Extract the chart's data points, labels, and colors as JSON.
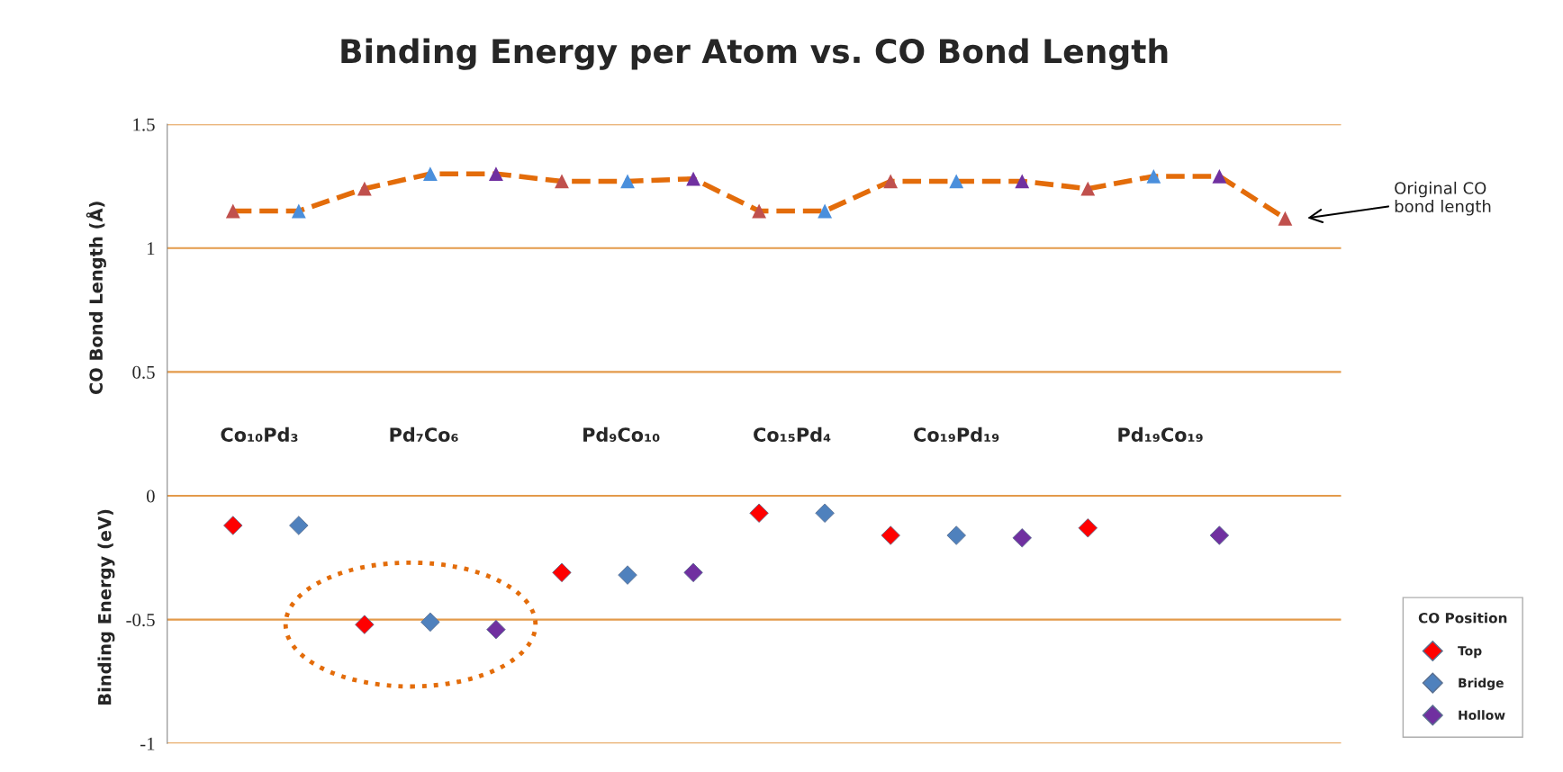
{
  "chart_data": {
    "type": "scatter",
    "title": "Binding Energy per Atom vs. CO Bond Length",
    "ylabel": "CO Bond Length (Å)",
    "categories": [
      null,
      null,
      null,
      null,
      null,
      null,
      null,
      null,
      null,
      null,
      null,
      null,
      null,
      null,
      null,
      null,
      null
    ],
    "series": [
      {
        "type": "line",
        "color": "#e36c0a",
        "line_style": "dashed",
        "marker": "none",
        "values": [
          1.15,
          1.15,
          1.24,
          1.3,
          1.3,
          1.27,
          1.27,
          1.28,
          1.15,
          1.15,
          1.27,
          1.27,
          1.27,
          1.24,
          1.29,
          1.29,
          1.12
        ]
      },
      {
        "marker": "triangle",
        "colors": [
          "#c0504d",
          "#4a8fdc",
          "#c0504d",
          "#4a8fdc",
          "#7030a0",
          "#c0504d",
          "#4a8fdc",
          "#7030a0",
          "#c0504d",
          "#4a8fdc",
          "#c0504d",
          "#4a8fdc",
          "#7030a0",
          "#c0504d",
          "#4a8fdc",
          "#7030a0",
          "#c0504d"
        ],
        "values": [
          1.15,
          1.15,
          1.24,
          1.3,
          1.3,
          1.27,
          1.27,
          1.28,
          1.15,
          1.15,
          1.27,
          1.27,
          1.27,
          1.24,
          1.29,
          1.29,
          1.12
        ]
      },
      {
        "marker": "diamond",
        "name": "Top",
        "color": "#ff0000",
        "values": [
          -0.12,
          null,
          -0.52,
          null,
          null,
          -0.31,
          null,
          null,
          -0.07,
          null,
          -0.16,
          null,
          null,
          -0.13,
          null,
          null,
          null
        ]
      },
      {
        "marker": "diamond",
        "name": "Bridge",
        "color": "#4f81bd",
        "values": [
          null,
          -0.12,
          null,
          -0.51,
          null,
          null,
          -0.32,
          null,
          null,
          -0.07,
          null,
          -0.16,
          null,
          null,
          null,
          null,
          null
        ]
      },
      {
        "marker": "diamond",
        "name": "Hollow",
        "color": "#7030a0",
        "values": [
          null,
          null,
          null,
          null,
          -0.54,
          null,
          null,
          -0.31,
          null,
          null,
          null,
          null,
          -0.17,
          null,
          null,
          -0.16,
          null
        ]
      }
    ],
    "legend_title": "CO Position",
    "legend": "bottom right",
    "ylim": [
      -1,
      1.5
    ],
    "yticks": [
      -1,
      -0.5,
      0,
      0.5,
      1,
      1.5
    ],
    "grid": "y",
    "tick_labels": "y",
    "annotations": [
      "Binding Energy (eV)",
      "Co₁₀Pd₃",
      "Pd₇Co₆",
      "Pd₉Co₁₀",
      "Co₁₅Pd₄",
      "Co₁₉Pd₁₉",
      "Pd₁₉Co₁₉",
      "Original CO\nbond length"
    ]
  }
}
